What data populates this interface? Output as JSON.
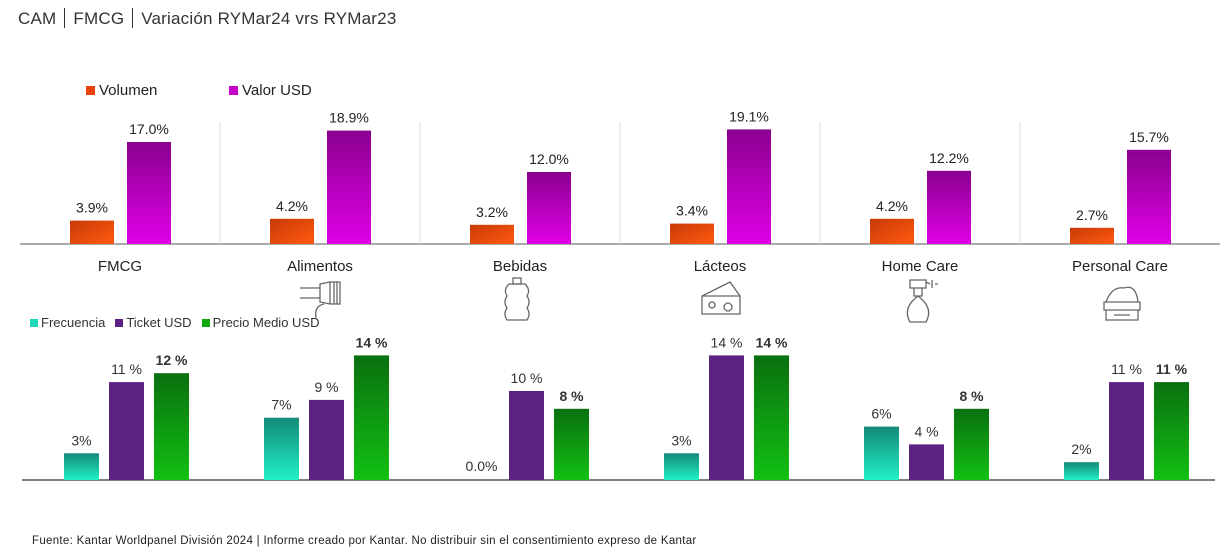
{
  "title": {
    "parts": [
      "CAM",
      "FMCG",
      "Variación RYMar24 vrs RYMar23"
    ]
  },
  "colors": {
    "volumen": "#e8440a",
    "valor": "#c400c8",
    "frecuencia": "#1ad8b8",
    "ticket": "#5c2282",
    "precio": "#10a810"
  },
  "chart_data": [
    {
      "type": "bar",
      "title": "",
      "categories": [
        "FMCG",
        "Alimentos",
        "Bebidas",
        "Lácteos",
        "Home Care",
        "Personal Care"
      ],
      "series": [
        {
          "name": "Volumen",
          "values": [
            3.9,
            4.2,
            3.2,
            3.4,
            4.2,
            2.7
          ],
          "labels": [
            "3.9%",
            "4.2%",
            "3.2%",
            "3.4%",
            "4.2%",
            "2.7%"
          ]
        },
        {
          "name": "Valor USD",
          "values": [
            17.0,
            18.9,
            12.0,
            19.1,
            12.2,
            15.7
          ],
          "labels": [
            "17.0%",
            "18.9%",
            "12.0%",
            "19.1%",
            "12.2%",
            "15.7%"
          ]
        }
      ],
      "legend": "top-left",
      "grid": false,
      "ylim": [
        0,
        20
      ]
    },
    {
      "type": "bar",
      "title": "",
      "categories": [
        "FMCG",
        "Alimentos",
        "Bebidas",
        "Lácteos",
        "Home Care",
        "Personal Care"
      ],
      "series": [
        {
          "name": "Frecuencia",
          "values": [
            3,
            7,
            0,
            3,
            6,
            2
          ],
          "labels": [
            "3%",
            "7%",
            "0.0%",
            "3%",
            "6%",
            "2%"
          ]
        },
        {
          "name": "Ticket USD",
          "values": [
            11,
            9,
            10,
            14,
            4,
            11
          ],
          "labels": [
            "11 %",
            "9 %",
            "10 %",
            "14 %",
            "4 %",
            "11 %"
          ]
        },
        {
          "name": "Precio Medio USD",
          "values": [
            12,
            14,
            8,
            14,
            8,
            11
          ],
          "labels": [
            "12 %",
            "14 %",
            "8 %",
            "14 %",
            "8 %",
            "11 %"
          ]
        }
      ],
      "legend": "top-left",
      "grid": false,
      "ylim": [
        0,
        15
      ]
    }
  ],
  "icons": [
    "none",
    "hand-icon",
    "bottle-icon",
    "cheese-icon",
    "spray-bottle-icon",
    "cream-jar-icon"
  ],
  "footer": "Fuente: Kantar Worldpanel División 2024 | Informe creado por Kantar. No distribuir sin el consentimiento expreso de Kantar"
}
